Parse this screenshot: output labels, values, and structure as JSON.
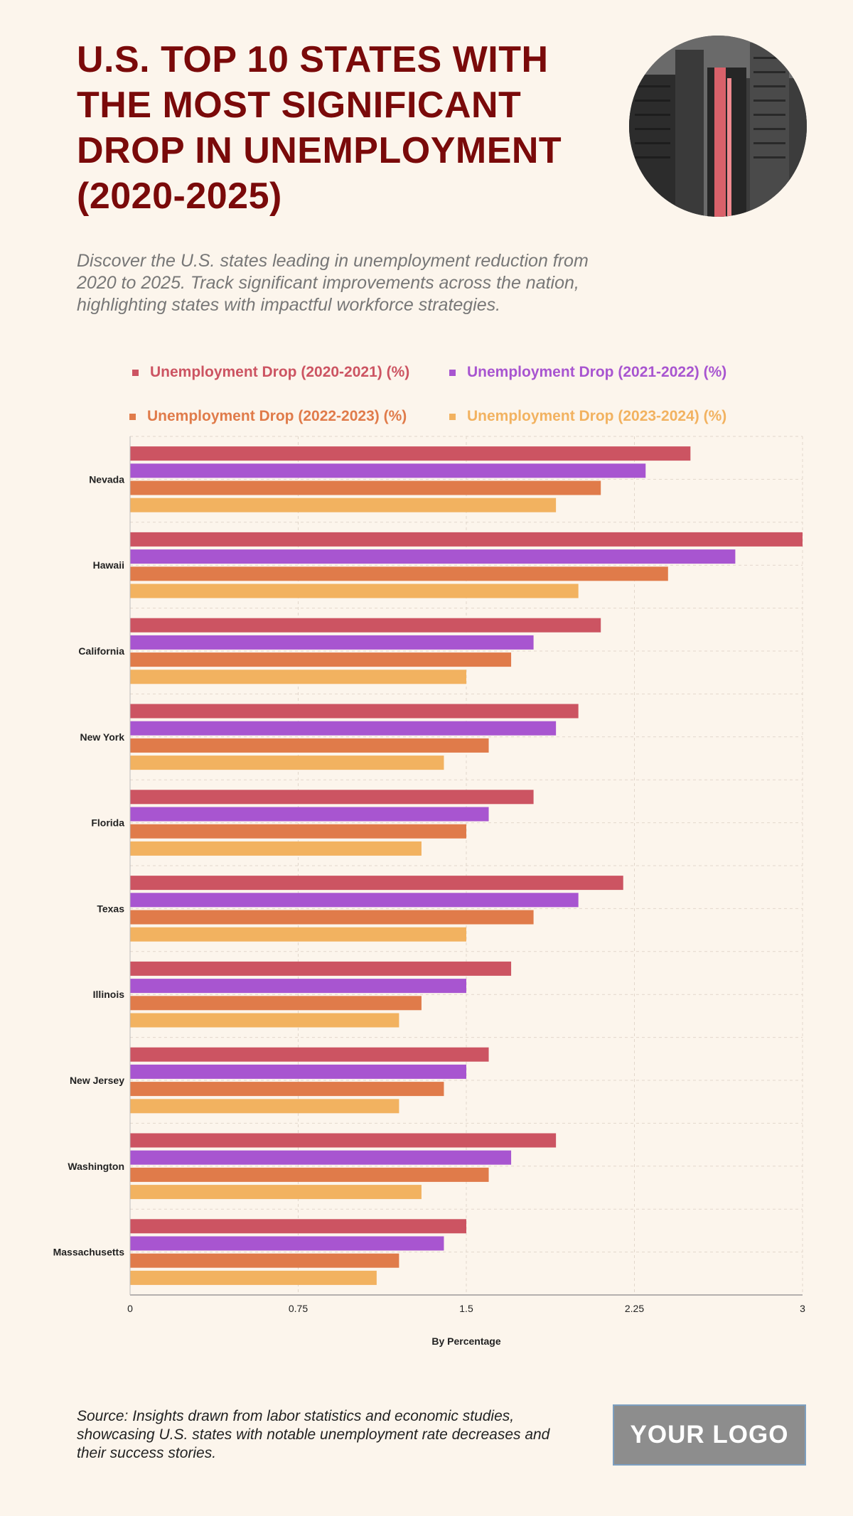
{
  "header": {
    "title": "U.S. TOP 10 STATES WITH THE MOST SIGNIFICANT DROP IN UNEMPLOYMENT (2020-2025)",
    "subtitle": "Discover the U.S. states leading in unemployment reduction from 2020 to 2025. Track significant improvements across the nation, highlighting states with impactful workforce strategies."
  },
  "footer": {
    "source": "Source: Insights drawn from labor statistics and economic studies, showcasing U.S. states with notable unemployment rate decreases and their success stories.",
    "logo": "YOUR LOGO"
  },
  "chart_data": {
    "type": "bar",
    "orientation": "horizontal",
    "categories": [
      "Nevada",
      "Hawaii",
      "California",
      "New York",
      "Florida",
      "Texas",
      "Illinois",
      "New Jersey",
      "Washington",
      "Massachusetts"
    ],
    "series": [
      {
        "name": "Unemployment Drop (2020-2021) (%)",
        "color": "#cc5462",
        "values": [
          2.5,
          3.0,
          2.1,
          2.0,
          1.8,
          2.2,
          1.7,
          1.6,
          1.9,
          1.5
        ]
      },
      {
        "name": "Unemployment Drop (2021-2022) (%)",
        "color": "#a855d0",
        "values": [
          2.3,
          2.7,
          1.8,
          1.9,
          1.6,
          2.0,
          1.5,
          1.5,
          1.7,
          1.4
        ]
      },
      {
        "name": "Unemployment Drop (2022-2023) (%)",
        "color": "#e07b4a",
        "values": [
          2.1,
          2.4,
          1.7,
          1.6,
          1.5,
          1.8,
          1.3,
          1.4,
          1.6,
          1.2
        ]
      },
      {
        "name": "Unemployment Drop (2023-2024) (%)",
        "color": "#f2b260",
        "values": [
          1.9,
          2.0,
          1.5,
          1.4,
          1.3,
          1.5,
          1.2,
          1.2,
          1.3,
          1.1
        ]
      }
    ],
    "xlabel": "By Percentage",
    "ylabel": "",
    "xlim": [
      0,
      3
    ],
    "xticks": [
      "0",
      "0.75",
      "1.5",
      "2.25",
      "3"
    ],
    "grid": true,
    "legend_position": "top"
  }
}
